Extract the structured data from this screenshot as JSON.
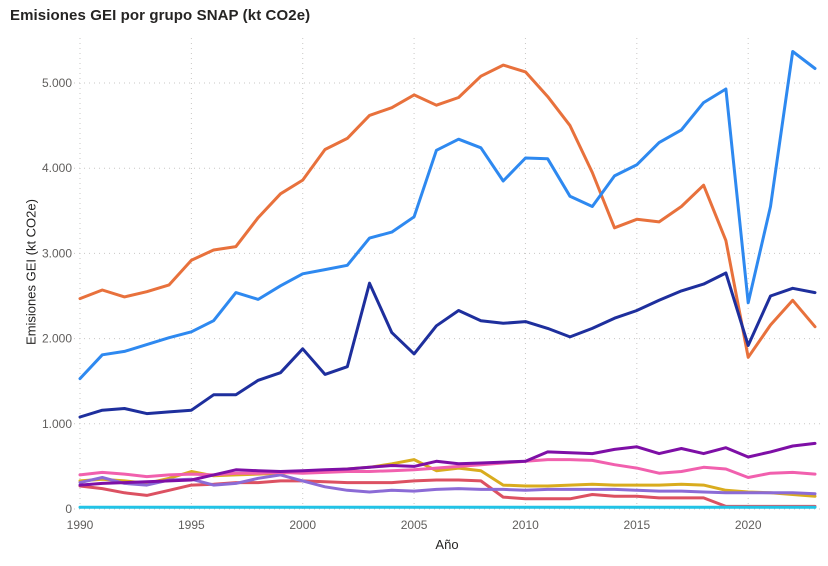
{
  "title": "Emisiones GEI por grupo SNAP (kt CO2e)",
  "axes": {
    "x_title": "Año",
    "y_title": "Emisiones GEI (kt CO2e)"
  },
  "colors": {
    "background": "#ffffff",
    "title_text": "#252423",
    "tick_text": "#605E5C",
    "gridline": "#C9C7C5"
  },
  "chart_data": {
    "type": "line",
    "title": "Emisiones GEI por grupo SNAP (kt CO2e)",
    "xlabel": "Año",
    "ylabel": "Emisiones GEI (kt CO2e)",
    "legend": "none",
    "grid": "dotted",
    "xlim": [
      1990,
      2023
    ],
    "ylim": [
      0,
      5500
    ],
    "x_ticks": [
      1990,
      1995,
      2000,
      2005,
      2010,
      2015,
      2020
    ],
    "y_ticks": [
      0,
      1000,
      2000,
      3000,
      4000,
      5000
    ],
    "y_tick_labels": [
      "0",
      "1.000",
      "2.000",
      "3.000",
      "4.000",
      "5.000"
    ],
    "x": [
      1990,
      1991,
      1992,
      1993,
      1994,
      1995,
      1996,
      1997,
      1998,
      1999,
      2000,
      2001,
      2002,
      2003,
      2004,
      2005,
      2006,
      2007,
      2008,
      2009,
      2010,
      2011,
      2012,
      2013,
      2014,
      2015,
      2016,
      2017,
      2018,
      2019,
      2020,
      2021,
      2022,
      2023
    ],
    "series": [
      {
        "name": "series-yellow",
        "color": "#D9AC1E",
        "values": [
          330,
          350,
          330,
          300,
          360,
          440,
          390,
          400,
          410,
          420,
          440,
          450,
          470,
          490,
          530,
          580,
          450,
          480,
          450,
          280,
          270,
          270,
          280,
          290,
          280,
          280,
          280,
          290,
          280,
          220,
          200,
          190,
          170,
          150
        ]
      },
      {
        "name": "series-red",
        "color": "#DC5162",
        "values": [
          270,
          240,
          190,
          160,
          220,
          280,
          290,
          310,
          310,
          330,
          330,
          320,
          310,
          310,
          310,
          330,
          340,
          340,
          330,
          140,
          120,
          120,
          120,
          170,
          150,
          150,
          130,
          130,
          130,
          30,
          30,
          30,
          30,
          30
        ]
      },
      {
        "name": "series-medium-purple",
        "color": "#8B6BD6",
        "values": [
          310,
          370,
          300,
          280,
          340,
          350,
          280,
          300,
          360,
          400,
          330,
          260,
          220,
          200,
          220,
          210,
          230,
          240,
          230,
          230,
          220,
          230,
          230,
          230,
          230,
          220,
          210,
          210,
          200,
          190,
          190,
          190,
          190,
          180
        ]
      },
      {
        "name": "series-pink",
        "color": "#F160AE",
        "values": [
          400,
          430,
          410,
          380,
          400,
          410,
          400,
          420,
          420,
          430,
          420,
          430,
          440,
          440,
          450,
          460,
          480,
          500,
          520,
          540,
          560,
          580,
          580,
          570,
          520,
          480,
          420,
          440,
          490,
          470,
          370,
          420,
          430,
          410
        ]
      },
      {
        "name": "series-purple",
        "color": "#7E0FA6",
        "values": [
          280,
          300,
          310,
          320,
          330,
          340,
          400,
          460,
          450,
          440,
          450,
          460,
          470,
          490,
          510,
          500,
          560,
          530,
          540,
          550,
          560,
          670,
          660,
          650,
          700,
          730,
          650,
          710,
          650,
          720,
          610,
          670,
          740,
          770
        ]
      },
      {
        "name": "series-orange",
        "color": "#E8713C",
        "values": [
          2470,
          2570,
          2490,
          2550,
          2630,
          2920,
          3040,
          3080,
          3420,
          3700,
          3860,
          4220,
          4350,
          4620,
          4710,
          4860,
          4740,
          4830,
          5080,
          5210,
          5130,
          4840,
          4500,
          3950,
          3300,
          3400,
          3370,
          3550,
          3800,
          3150,
          1780,
          2160,
          2450,
          2140
        ]
      },
      {
        "name": "series-navy",
        "color": "#1E2F9D",
        "values": [
          1080,
          1160,
          1180,
          1120,
          1140,
          1160,
          1340,
          1340,
          1510,
          1600,
          1880,
          1580,
          1670,
          2650,
          2070,
          1820,
          2150,
          2330,
          2210,
          2180,
          2200,
          2120,
          2020,
          2120,
          2240,
          2330,
          2450,
          2560,
          2640,
          2770,
          1920,
          2500,
          2590,
          2540
        ]
      },
      {
        "name": "series-light-blue",
        "color": "#2E89F0",
        "values": [
          1530,
          1810,
          1850,
          1930,
          2010,
          2080,
          2210,
          2540,
          2460,
          2620,
          2760,
          2810,
          2860,
          3180,
          3250,
          3430,
          4210,
          4340,
          4240,
          3850,
          4120,
          4110,
          3670,
          3550,
          3910,
          4040,
          4300,
          4450,
          4770,
          4930,
          2420,
          3550,
          5370,
          5170
        ]
      },
      {
        "name": "series-cyan",
        "color": "#22C3E6",
        "values": [
          20,
          20,
          20,
          20,
          20,
          20,
          20,
          20,
          20,
          20,
          20,
          20,
          20,
          20,
          20,
          20,
          20,
          20,
          20,
          20,
          20,
          20,
          20,
          20,
          20,
          20,
          20,
          20,
          20,
          20,
          20,
          20,
          20,
          20
        ]
      }
    ]
  }
}
